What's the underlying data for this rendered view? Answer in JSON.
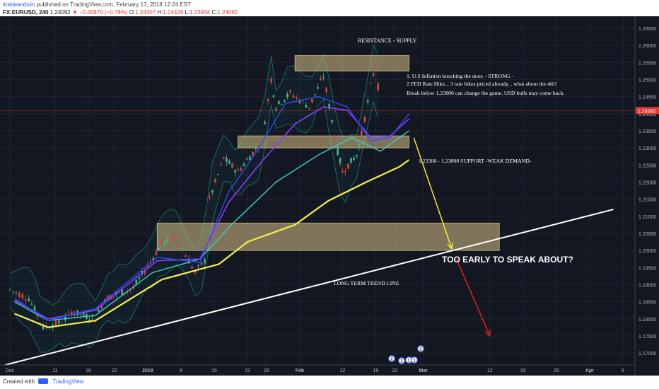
{
  "header": {
    "author": "itradeandwin",
    "published_text": " published on TradingView.com, February 17, 2018 12:24 EST",
    "symbol_line": "FX:EURUSD, 240",
    "price": "1.24092",
    "change": "▼ −0.00970 (−0.78%)",
    "ohlc": [
      {
        "label": "O:",
        "value": "1.24407"
      },
      {
        "label": "H:",
        "value": "1.24426"
      },
      {
        "label": "L:",
        "value": "1.23934"
      },
      {
        "label": "C:",
        "value": "1.24092"
      }
    ]
  },
  "footer": {
    "created_with": "Created with",
    "brand": "TradingView"
  },
  "colors": {
    "background": "#131722",
    "grid": "#1f2430",
    "zone": "#d9c189",
    "ema_yellow": "#f4f04a",
    "ema_cyan": "#3fd1c7",
    "ema_purple": "#8b3dff",
    "ema_blue": "#2f4bff",
    "bands": "#1c7a6e",
    "up": "#45b58d",
    "down": "#d64545",
    "last_price": "#e53935",
    "trend": "#ffffff",
    "arrow_yellow": "#f5ee20",
    "arrow_red": "#e02020"
  },
  "chart_data": {
    "type": "candlestick",
    "symbol": "FX:EURUSD",
    "interval": "240",
    "x_tick_labels": [
      "Dec",
      "11",
      "18",
      "22",
      "2018",
      "8",
      "15",
      "22",
      "26",
      "Feb",
      "12",
      "19",
      "23",
      "Mar",
      "12",
      "19",
      "26",
      "Apr",
      "9"
    ],
    "y_tick_labels": [
      "1.26500",
      "1.26000",
      "1.25500",
      "1.25000",
      "1.24500",
      "1.24000",
      "1.23500",
      "1.23000",
      "1.22500",
      "1.22000",
      "1.21500",
      "1.21000",
      "1.20500",
      "1.20000",
      "1.19500",
      "1.19000",
      "1.18500",
      "1.18000",
      "1.17500",
      "1.17000"
    ],
    "ylim": [
      1.1665,
      1.2685
    ],
    "last_price": "1.24092",
    "price_path": [
      {
        "x": "Dec 1",
        "y": 1.1885
      },
      {
        "x": "Dec 5",
        "y": 1.186
      },
      {
        "x": "Dec 8",
        "y": 1.1775
      },
      {
        "x": "Dec 12",
        "y": 1.179
      },
      {
        "x": "Dec 14",
        "y": 1.182
      },
      {
        "x": "Dec 19",
        "y": 1.18
      },
      {
        "x": "Dec 21",
        "y": 1.186
      },
      {
        "x": "Dec 27",
        "y": 1.189
      },
      {
        "x": "Jan 2",
        "y": 1.202
      },
      {
        "x": "Jan 5",
        "y": 1.204
      },
      {
        "x": "Jan 9",
        "y": 1.1935
      },
      {
        "x": "Jan 11",
        "y": 1.197
      },
      {
        "x": "Jan 12",
        "y": 1.215
      },
      {
        "x": "Jan 15",
        "y": 1.227
      },
      {
        "x": "Jan 18",
        "y": 1.223
      },
      {
        "x": "Jan 23",
        "y": 1.232
      },
      {
        "x": "Jan 25",
        "y": 1.25
      },
      {
        "x": "Jan 26",
        "y": 1.242
      },
      {
        "x": "Jan 29",
        "y": 1.246
      },
      {
        "x": "Feb 2",
        "y": 1.242
      },
      {
        "x": "Feb 5",
        "y": 1.251
      },
      {
        "x": "Feb 8",
        "y": 1.229
      },
      {
        "x": "Feb 9",
        "y": 1.223
      },
      {
        "x": "Feb 12",
        "y": 1.228
      },
      {
        "x": "Feb 13",
        "y": 1.234
      },
      {
        "x": "Feb 15",
        "y": 1.248
      },
      {
        "x": "Feb 16",
        "y": 1.255
      },
      {
        "x": "Feb 17",
        "y": 1.2409
      }
    ],
    "moving_averages": [
      {
        "color": "yellow",
        "points": [
          [
            1,
            1.1815
          ],
          [
            8,
            1.1775
          ],
          [
            18,
            1.1795
          ],
          [
            32,
            1.1915
          ],
          [
            44,
            1.196
          ],
          [
            50,
            1.2025
          ],
          [
            60,
            1.2075
          ],
          [
            67,
            1.2145
          ],
          [
            75,
            1.22
          ],
          [
            82,
            1.2245
          ],
          [
            84,
            1.2265
          ]
        ]
      },
      {
        "color": "cyan",
        "points": [
          [
            1,
            1.185
          ],
          [
            8,
            1.1795
          ],
          [
            18,
            1.181
          ],
          [
            30,
            1.1935
          ],
          [
            40,
            1.1975
          ],
          [
            47,
            1.208
          ],
          [
            56,
            1.22
          ],
          [
            65,
            1.228
          ],
          [
            72,
            1.233
          ],
          [
            78,
            1.229
          ],
          [
            84,
            1.235
          ]
        ]
      },
      {
        "color": "purple",
        "points": [
          [
            1,
            1.1855
          ],
          [
            8,
            1.18
          ],
          [
            18,
            1.1825
          ],
          [
            31,
            1.197
          ],
          [
            40,
            1.1975
          ],
          [
            46,
            1.214
          ],
          [
            53,
            1.226
          ],
          [
            60,
            1.237
          ],
          [
            66,
            1.242
          ],
          [
            71,
            1.241
          ],
          [
            76,
            1.233
          ],
          [
            80,
            1.2335
          ],
          [
            84,
            1.2385
          ]
        ]
      },
      {
        "color": "blue",
        "points": [
          [
            1,
            1.186
          ],
          [
            8,
            1.1795
          ],
          [
            18,
            1.183
          ],
          [
            31,
            1.198
          ],
          [
            40,
            1.1965
          ],
          [
            46,
            1.217
          ],
          [
            52,
            1.229
          ],
          [
            58,
            1.243
          ],
          [
            65,
            1.245
          ],
          [
            71,
            1.242
          ],
          [
            76,
            1.232
          ],
          [
            80,
            1.233
          ],
          [
            84,
            1.24
          ]
        ]
      }
    ],
    "zones": [
      {
        "name": "resistance",
        "from": 1.2525,
        "to": 1.257,
        "x_start": 60,
        "x_end": 84
      },
      {
        "name": "support",
        "from": 1.23,
        "to": 1.2335,
        "x_start": 48,
        "x_end": 84
      },
      {
        "name": "lower",
        "from": 1.2,
        "to": 1.208,
        "x_start": 31,
        "x_end": 103
      }
    ],
    "trend_line": {
      "from": [
        -1,
        1.1665
      ],
      "to": [
        127,
        1.212
      ]
    },
    "arrows": [
      {
        "color": "yellow",
        "from": [
          85,
          1.233
        ],
        "to": [
          93,
          1.2005
        ]
      },
      {
        "color": "red",
        "from": [
          94,
          1.1975
        ],
        "to": [
          101,
          1.175
        ]
      }
    ],
    "annotations": {
      "resistance": "RESISTANCE - SUPPLY",
      "notes": [
        "1. U.S Inflation knocking the door. - STRONG -",
        "2.FED Rate Hike... 3 rate hikes priced already... what about the 4th?",
        "Break below 1.23000 can change the game. USD bulls may come back."
      ],
      "support": "1.23300 - 1.23000 SUPPORT -WEAK DEMAND-",
      "question": "TOO EARLY TO SPEAK ABOUT?",
      "trend": "LONG TERM TREND LINE"
    },
    "event_markers": [
      "2",
      "2",
      "1",
      "1",
      "1",
      "2"
    ],
    "grid": true
  }
}
